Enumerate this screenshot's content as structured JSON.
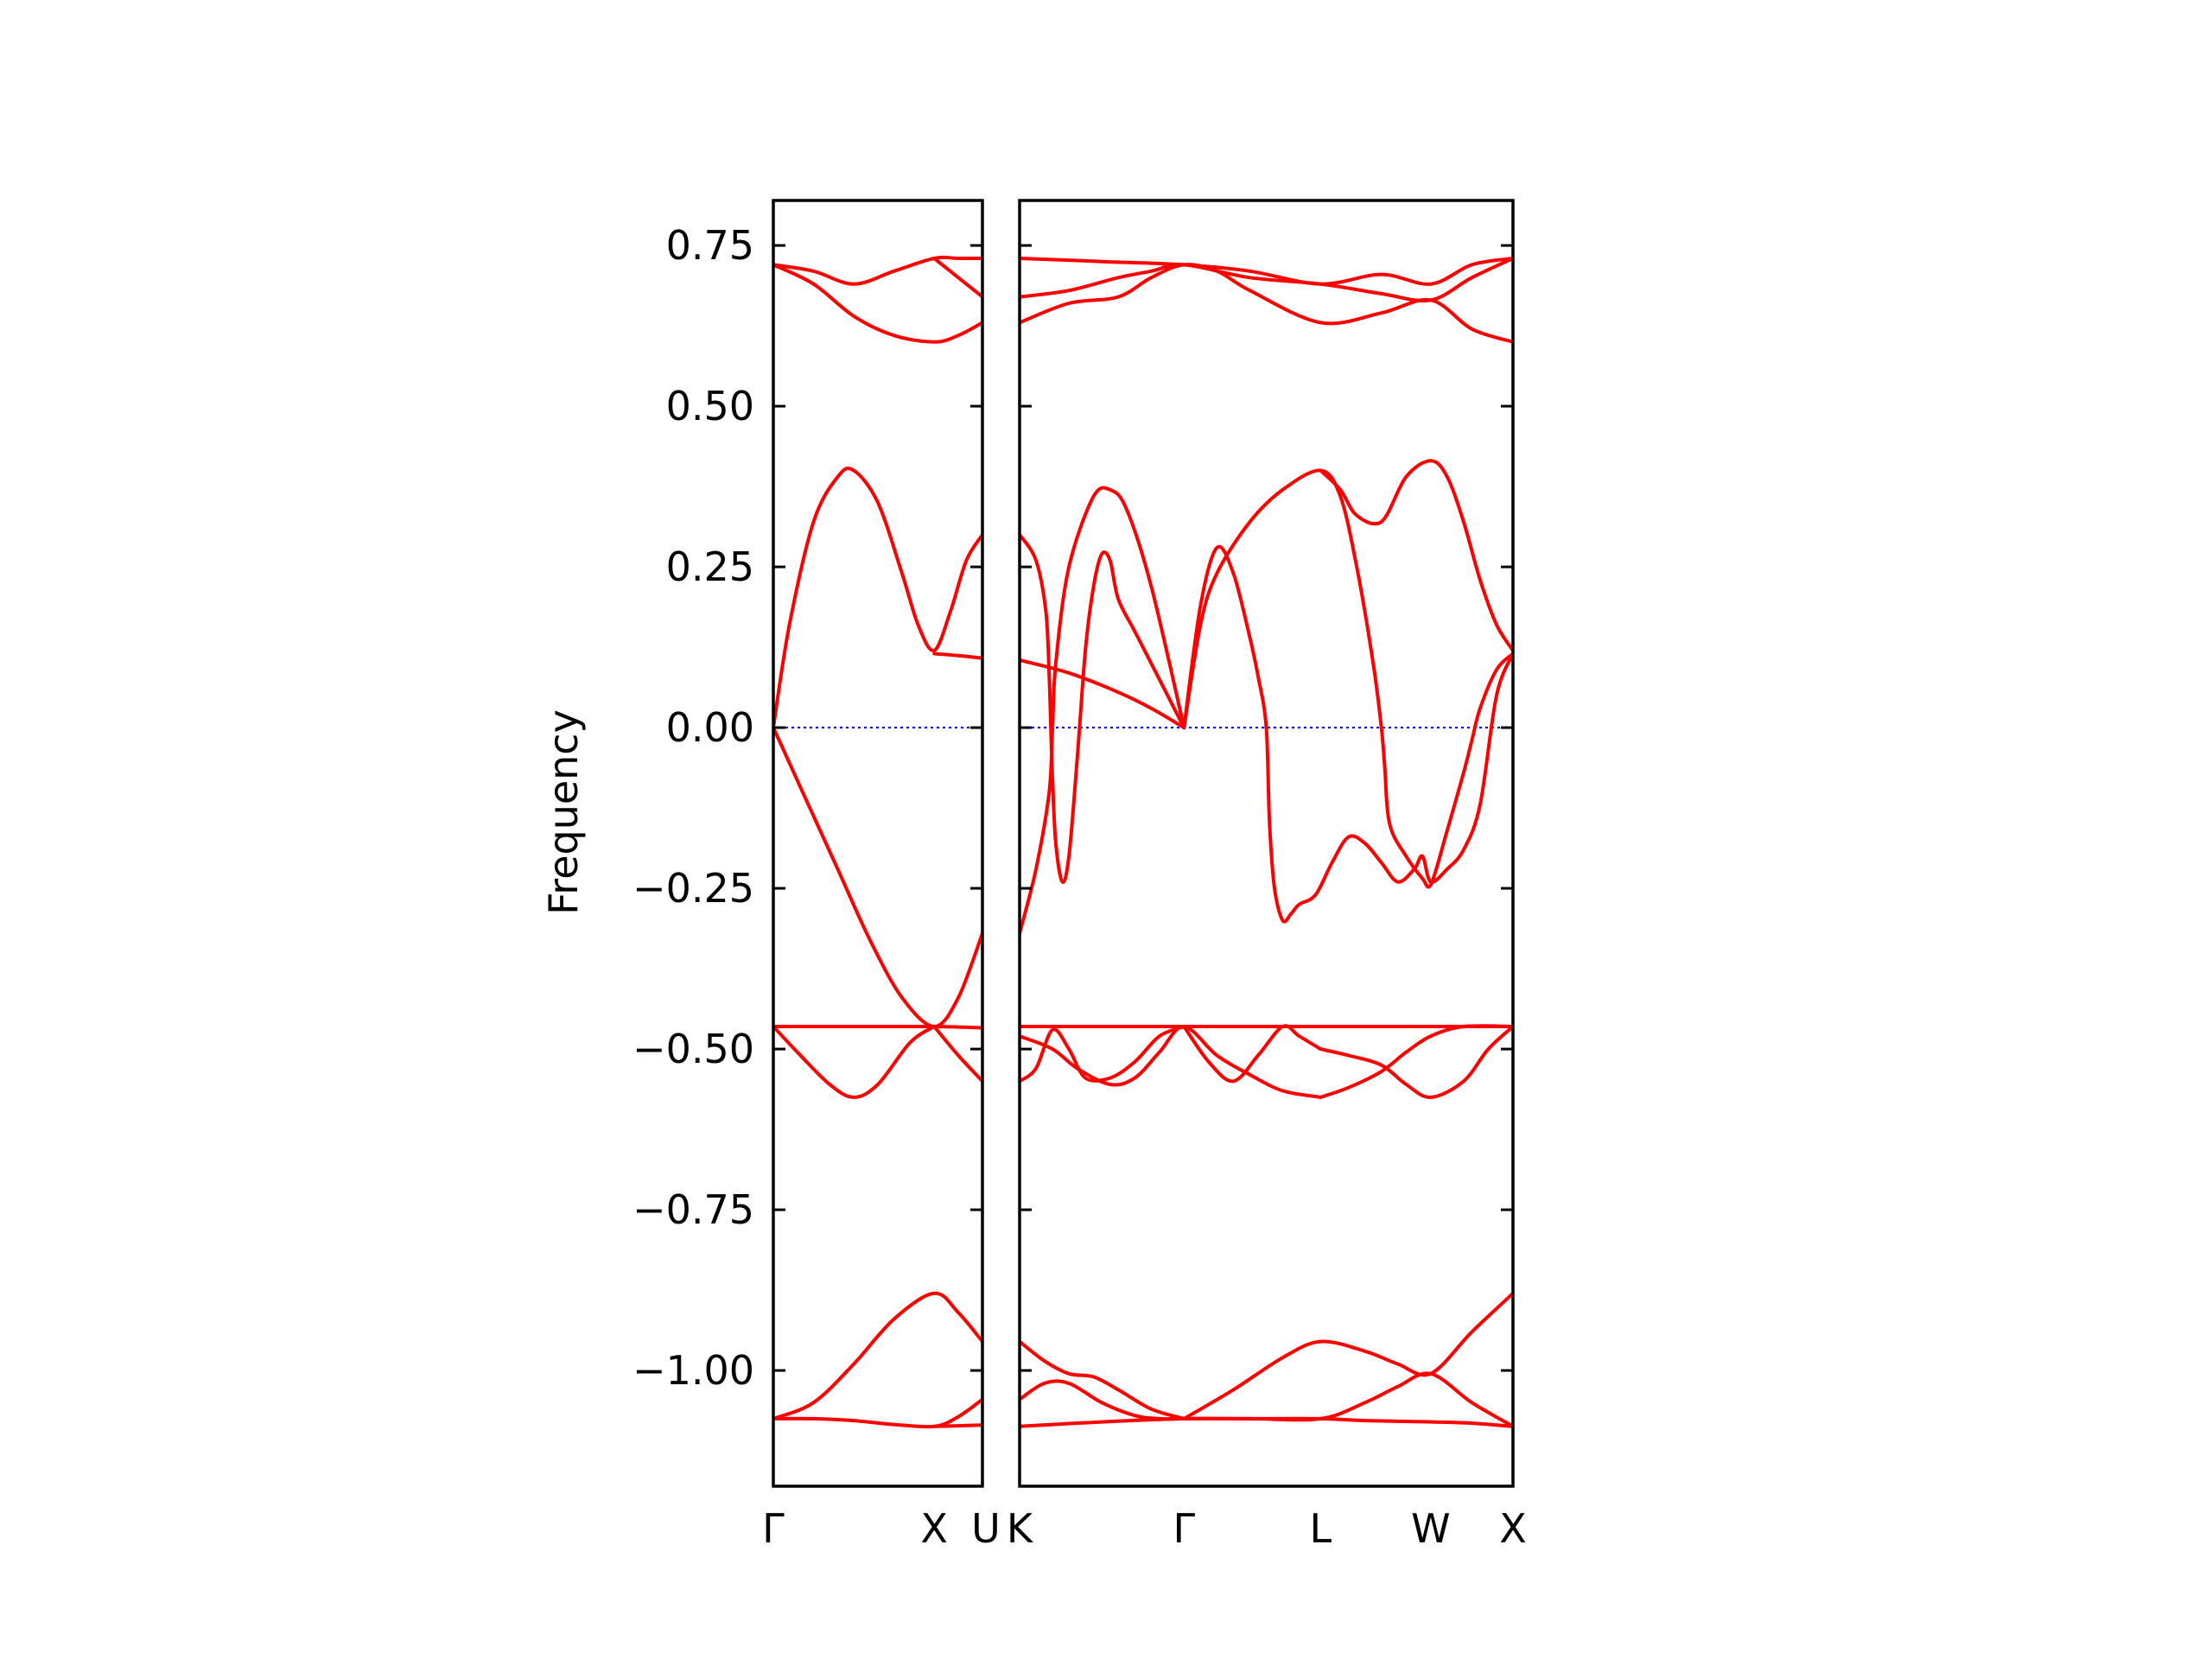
{
  "chart_data": {
    "type": "line",
    "title": "",
    "ylabel": "Frequency",
    "xlabel": "",
    "ylim": [
      -1.18,
      0.82
    ],
    "y_ticks": [
      0.75,
      0.5,
      0.25,
      0.0,
      -0.25,
      -0.5,
      -0.75,
      -1.0
    ],
    "y_tick_labels": [
      "0.75",
      "0.50",
      "0.25",
      "0.00",
      "−0.25",
      "−0.50",
      "−0.75",
      "−1.00"
    ],
    "grid": false,
    "legend": "none",
    "colors": {
      "bands": "#ff0000",
      "zero_line": "#0000ff",
      "axes": "#000000"
    },
    "panels": [
      {
        "name": "Gamma-X-U",
        "xlim": [
          0,
          1.3
        ],
        "ticks": [
          {
            "x": 0,
            "label": "Γ"
          },
          {
            "x": 1.0,
            "label": "X"
          },
          {
            "x": 1.3,
            "label": "U"
          }
        ],
        "bands": [
          {
            "x": [
              0,
              0.25,
              0.5,
              0.75,
              1.0,
              1.15,
              1.3
            ],
            "y": [
              0.72,
              0.71,
              0.69,
              0.71,
              0.73,
              0.73,
              0.73
            ]
          },
          {
            "x": [
              0,
              0.25,
              0.5,
              0.75,
              1.0,
              1.15,
              1.3
            ],
            "y": [
              0.72,
              0.69,
              0.64,
              0.61,
              0.6,
              0.61,
              0.63
            ]
          },
          {
            "x": [
              1.0,
              1.15,
              1.3
            ],
            "y": [
              0.73,
              0.7,
              0.67
            ]
          },
          {
            "x": [
              0,
              0.1,
              0.25,
              0.4,
              0.5,
              0.65,
              0.8,
              0.9,
              1.0,
              1.1,
              1.2,
              1.3
            ],
            "y": [
              0.0,
              0.16,
              0.32,
              0.39,
              0.4,
              0.35,
              0.24,
              0.16,
              0.12,
              0.18,
              0.26,
              0.3
            ]
          },
          {
            "x": [
              1.0,
              1.15,
              1.3
            ],
            "y": [
              0.115,
              0.112,
              0.108
            ]
          },
          {
            "x": [
              0,
              0.2,
              0.4,
              0.6,
              0.8,
              1.0,
              1.15,
              1.3
            ],
            "y": [
              0.0,
              -0.11,
              -0.22,
              -0.33,
              -0.42,
              -0.465,
              -0.42,
              -0.32
            ]
          },
          {
            "x": [
              0,
              0.5,
              1.0,
              1.3
            ],
            "y": [
              -0.465,
              -0.465,
              -0.465,
              -0.467
            ]
          },
          {
            "x": [
              0,
              0.15,
              0.35,
              0.5,
              0.65,
              0.85,
              1.0
            ],
            "y": [
              -0.465,
              -0.505,
              -0.555,
              -0.575,
              -0.555,
              -0.49,
              -0.465
            ]
          },
          {
            "x": [
              1.0,
              1.15,
              1.3
            ],
            "y": [
              -0.465,
              -0.51,
              -0.55
            ]
          },
          {
            "x": [
              0,
              0.25,
              0.5,
              0.75,
              1.0,
              1.15,
              1.3
            ],
            "y": [
              -1.075,
              -1.05,
              -0.99,
              -0.92,
              -0.88,
              -0.91,
              -0.955
            ]
          },
          {
            "x": [
              0,
              0.25,
              0.5,
              0.75,
              1.0,
              1.15,
              1.3
            ],
            "y": [
              -1.075,
              -1.075,
              -1.078,
              -1.084,
              -1.087,
              -1.072,
              -1.045
            ]
          },
          {
            "x": [
              1.0,
              1.15,
              1.3
            ],
            "y": [
              -1.087,
              -1.086,
              -1.085
            ]
          }
        ]
      },
      {
        "name": "K-Gamma-L-W-X",
        "xlim": [
          0,
          3.0
        ],
        "ticks": [
          {
            "x": 0,
            "label": "K"
          },
          {
            "x": 1.0,
            "label": "Γ"
          },
          {
            "x": 1.83,
            "label": "L"
          },
          {
            "x": 2.5,
            "label": "W"
          },
          {
            "x": 3.0,
            "label": "X"
          }
        ],
        "bands": [
          {
            "x": [
              0,
              0.5,
              1.0,
              1.4,
              1.83,
              2.2,
              2.5,
              2.75,
              3.0
            ],
            "y": [
              0.73,
              0.725,
              0.72,
              0.71,
              0.69,
              0.705,
              0.69,
              0.72,
              0.73
            ]
          },
          {
            "x": [
              0,
              0.3,
              0.6,
              0.8,
              1.0,
              1.2,
              1.4,
              1.83,
              2.2,
              2.5,
              2.75,
              3.0
            ],
            "y": [
              0.63,
              0.66,
              0.67,
              0.7,
              0.72,
              0.71,
              0.68,
              0.63,
              0.645,
              0.665,
              0.62,
              0.6
            ]
          },
          {
            "x": [
              0,
              0.3,
              0.6,
              0.8,
              1.0,
              1.4,
              1.83,
              2.2,
              2.5,
              2.75,
              3.0
            ],
            "y": [
              0.67,
              0.68,
              0.7,
              0.71,
              0.72,
              0.7,
              0.69,
              0.675,
              0.665,
              0.7,
              0.73
            ]
          },
          {
            "x": [
              0,
              0.1,
              0.16,
              0.18,
              0.19
            ],
            "y": [
              0.3,
              0.26,
              0.18,
              0.08,
              0.0
            ]
          },
          {
            "x": [
              0.19,
              0.2,
              0.22,
              0.26,
              0.3,
              0.35,
              0.4,
              0.45,
              0.5,
              0.55,
              0.6,
              0.7,
              0.8,
              0.9,
              1.0
            ],
            "y": [
              0.0,
              -0.08,
              -0.18,
              -0.24,
              -0.2,
              -0.05,
              0.12,
              0.22,
              0.27,
              0.26,
              0.2,
              0.15,
              0.1,
              0.05,
              0.0
            ]
          },
          {
            "x": [
              0,
              0.1,
              0.18,
              0.2,
              0.22,
              0.3,
              0.45,
              0.55,
              0.65,
              0.8,
              1.0
            ],
            "y": [
              -0.32,
              -0.22,
              -0.1,
              0.0,
              0.1,
              0.25,
              0.36,
              0.37,
              0.34,
              0.22,
              0.0
            ]
          },
          {
            "x": [
              0,
              0.3,
              0.6,
              0.8,
              1.0
            ],
            "y": [
              0.105,
              0.085,
              0.055,
              0.03,
              0.0
            ]
          },
          {
            "x": [
              1.0,
              1.1,
              1.2,
              1.3,
              1.4,
              1.45,
              1.5,
              1.52,
              1.55,
              1.6,
              1.65,
              1.7,
              1.8,
              1.9,
              2.0,
              2.1,
              2.2,
              2.3,
              2.4,
              2.45,
              2.5,
              2.6,
              2.7,
              2.8,
              2.9,
              3.0
            ],
            "y": [
              0.0,
              0.19,
              0.28,
              0.24,
              0.14,
              0.08,
              0.0,
              -0.15,
              -0.25,
              -0.3,
              -0.29,
              -0.275,
              -0.26,
              -0.21,
              -0.17,
              -0.18,
              -0.21,
              -0.24,
              -0.22,
              -0.2,
              -0.24,
              -0.22,
              -0.19,
              -0.12,
              0.05,
              0.115
            ]
          },
          {
            "x": [
              1.0,
              1.1,
              1.2,
              1.4,
              1.6,
              1.83,
              1.95,
              2.05,
              2.15,
              2.2,
              2.22,
              2.25,
              2.35,
              2.45,
              2.5,
              2.6,
              2.7,
              2.75,
              2.8,
              2.9,
              3.0
            ],
            "y": [
              0.0,
              0.16,
              0.24,
              0.32,
              0.37,
              0.4,
              0.36,
              0.25,
              0.1,
              0.0,
              -0.06,
              -0.15,
              -0.2,
              -0.235,
              -0.245,
              -0.16,
              -0.07,
              -0.02,
              0.03,
              0.09,
              0.115
            ]
          },
          {
            "x": [
              1.83,
              1.95,
              2.05,
              2.2,
              2.35,
              2.5,
              2.6,
              2.7,
              2.8,
              2.9,
              3.0
            ],
            "y": [
              0.4,
              0.37,
              0.33,
              0.32,
              0.39,
              0.415,
              0.39,
              0.32,
              0.23,
              0.16,
              0.12
            ]
          },
          {
            "x": [
              0,
              1.0,
              1.83,
              2.5,
              3.0
            ],
            "y": [
              -0.465,
              -0.465,
              -0.465,
              -0.465,
              -0.465
            ]
          },
          {
            "x": [
              0,
              0.2,
              0.35,
              0.55,
              0.7,
              0.85,
              1.0,
              1.2,
              1.4,
              1.6,
              1.83
            ],
            "y": [
              -0.48,
              -0.5,
              -0.53,
              -0.555,
              -0.545,
              -0.505,
              -0.465,
              -0.51,
              -0.54,
              -0.565,
              -0.575
            ]
          },
          {
            "x": [
              0,
              0.1,
              0.2,
              0.3,
              0.4,
              0.55,
              0.7,
              0.85,
              1.0
            ],
            "y": [
              -0.55,
              -0.53,
              -0.47,
              -0.5,
              -0.545,
              -0.545,
              -0.52,
              -0.48,
              -0.465
            ]
          },
          {
            "x": [
              1.0,
              1.15,
              1.3,
              1.45,
              1.6,
              1.7,
              1.83
            ],
            "y": [
              -0.465,
              -0.52,
              -0.55,
              -0.51,
              -0.465,
              -0.48,
              -0.5
            ]
          },
          {
            "x": [
              1.83,
              2.0,
              2.2,
              2.35,
              2.5,
              2.7,
              2.85,
              3.0
            ],
            "y": [
              -0.5,
              -0.51,
              -0.525,
              -0.555,
              -0.575,
              -0.55,
              -0.5,
              -0.465
            ]
          },
          {
            "x": [
              1.83,
              2.0,
              2.2,
              2.35,
              2.5,
              2.7,
              3.0
            ],
            "y": [
              -0.575,
              -0.56,
              -0.535,
              -0.505,
              -0.48,
              -0.465,
              -0.465
            ]
          },
          {
            "x": [
              0,
              0.15,
              0.3,
              0.45,
              0.6,
              0.8,
              1.0
            ],
            "y": [
              -0.955,
              -0.985,
              -1.005,
              -1.01,
              -1.03,
              -1.06,
              -1.075
            ]
          },
          {
            "x": [
              0,
              0.15,
              0.3,
              0.5,
              0.7,
              0.85,
              1.0
            ],
            "y": [
              -1.045,
              -1.02,
              -1.02,
              -1.05,
              -1.07,
              -1.075,
              -1.075
            ]
          },
          {
            "x": [
              1.0,
              1.3,
              1.6,
              1.83,
              2.1,
              2.3,
              2.5,
              2.75,
              3.0
            ],
            "y": [
              -1.075,
              -1.03,
              -0.98,
              -0.955,
              -0.97,
              -0.99,
              -1.005,
              -0.94,
              -0.88
            ]
          },
          {
            "x": [
              1.0,
              1.4,
              1.83,
              2.1,
              2.3,
              2.5,
              2.75,
              3.0
            ],
            "y": [
              -1.075,
              -1.075,
              -1.075,
              -1.05,
              -1.025,
              -1.005,
              -1.05,
              -1.087
            ]
          },
          {
            "x": [
              0,
              0.5,
              1.0,
              1.4,
              1.83,
              2.1,
              2.5,
              2.75,
              3.0
            ],
            "y": [
              -1.087,
              -1.08,
              -1.075,
              -1.075,
              -1.075,
              -1.078,
              -1.08,
              -1.082,
              -1.087
            ]
          }
        ]
      }
    ]
  }
}
